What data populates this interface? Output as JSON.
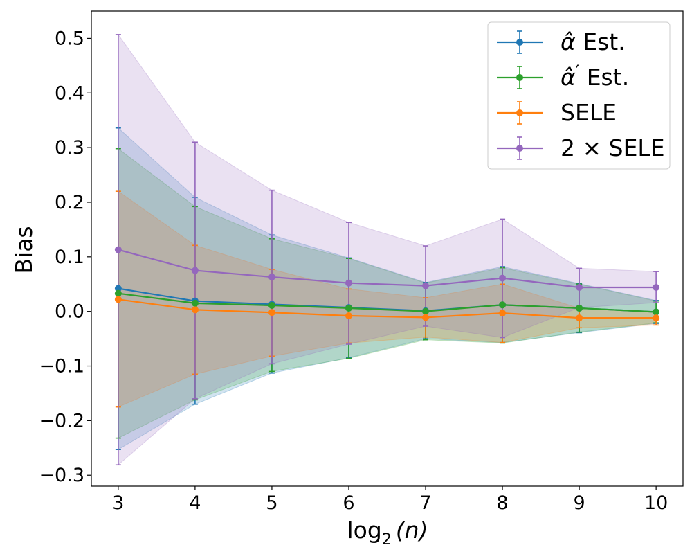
{
  "chart_data": {
    "type": "line",
    "title": "",
    "xlabel": "log",
    "xlabel_sub": "2",
    "xlabel_arg": "(n)",
    "ylabel": "Bias",
    "xlim": [
      2.65,
      10.35
    ],
    "ylim": [
      -0.32,
      0.55
    ],
    "x": [
      3,
      4,
      5,
      6,
      7,
      8,
      9,
      10
    ],
    "x_ticks": [
      3,
      4,
      5,
      6,
      7,
      8,
      9,
      10
    ],
    "x_tick_labels": [
      "3",
      "4",
      "5",
      "6",
      "7",
      "8",
      "9",
      "10"
    ],
    "y_ticks": [
      -0.3,
      -0.2,
      -0.1,
      0.0,
      0.1,
      0.2,
      0.3,
      0.4,
      0.5
    ],
    "y_tick_labels": [
      "−0.3",
      "−0.2",
      "−0.1",
      "0.0",
      "0.1",
      "0.2",
      "0.3",
      "0.4",
      "0.5"
    ],
    "grid": false,
    "legend_position": "top-right",
    "series": [
      {
        "name": "alpha-hat",
        "legend_base": "α̂",
        "legend_prime": "",
        "legend_suffix": " Est.",
        "color": "#1f77b4",
        "values": [
          0.042,
          0.019,
          0.013,
          0.007,
          0.001,
          0.012,
          0.006,
          -0.001
        ],
        "lower": [
          -0.253,
          -0.17,
          -0.113,
          -0.085,
          -0.05,
          -0.057,
          -0.039,
          -0.022
        ],
        "upper": [
          0.336,
          0.209,
          0.14,
          0.098,
          0.053,
          0.082,
          0.051,
          0.02
        ]
      },
      {
        "name": "alpha-hat-prime",
        "legend_base": "α̂",
        "legend_prime": "′",
        "legend_suffix": " Est.",
        "color": "#2ca02c",
        "values": [
          0.033,
          0.015,
          0.011,
          0.006,
          0.0,
          0.012,
          0.006,
          -0.001
        ],
        "lower": [
          -0.232,
          -0.162,
          -0.11,
          -0.086,
          -0.052,
          -0.058,
          -0.038,
          -0.021
        ],
        "upper": [
          0.298,
          0.192,
          0.133,
          0.097,
          0.052,
          0.08,
          0.05,
          0.019
        ]
      },
      {
        "name": "SELE",
        "legend_base": "SELE",
        "legend_prime": "",
        "legend_suffix": "",
        "color": "#ff7f0e",
        "values": [
          0.022,
          0.003,
          -0.002,
          -0.008,
          -0.011,
          -0.003,
          -0.012,
          -0.012
        ],
        "lower": [
          -0.175,
          -0.115,
          -0.082,
          -0.058,
          -0.047,
          -0.057,
          -0.03,
          -0.025
        ],
        "upper": [
          0.22,
          0.121,
          0.077,
          0.041,
          0.025,
          0.05,
          0.006,
          -0.001
        ]
      },
      {
        "name": "2xSELE",
        "legend_base": "2 × SELE",
        "legend_prime": "",
        "legend_suffix": "",
        "color": "#9467bd",
        "values": [
          0.113,
          0.075,
          0.063,
          0.052,
          0.047,
          0.061,
          0.044,
          0.044
        ],
        "lower": [
          -0.281,
          -0.16,
          -0.096,
          -0.06,
          -0.027,
          -0.048,
          0.007,
          0.016
        ],
        "upper": [
          0.507,
          0.31,
          0.222,
          0.163,
          0.12,
          0.169,
          0.079,
          0.073
        ]
      }
    ]
  }
}
